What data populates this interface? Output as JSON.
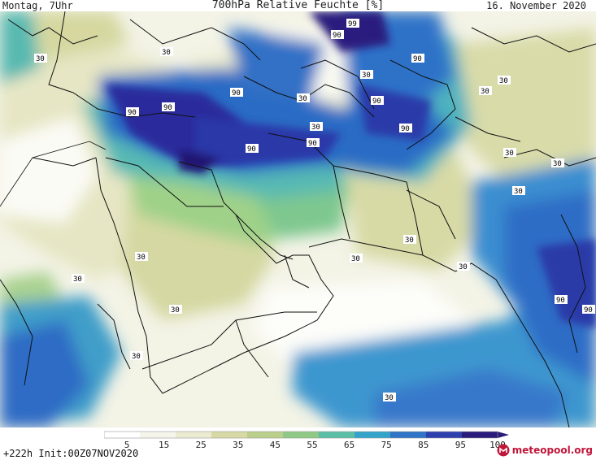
{
  "header": {
    "left": "Montag, 7Uhr",
    "title": "700hPa Relative Feuchte [%]",
    "right": "16. November 2020"
  },
  "footer": {
    "run_info": "+222h  Init:00Z07NOV2020",
    "brand": "meteopool.org"
  },
  "colorbar": {
    "ticks": [
      "5",
      "15",
      "25",
      "35",
      "45",
      "55",
      "65",
      "75",
      "85",
      "95",
      "100"
    ],
    "colors": [
      "#ffffff",
      "#f6f5ec",
      "#ebebd2",
      "#d7d9a5",
      "#b9cf8a",
      "#8fc986",
      "#5cbfa5",
      "#34a3c9",
      "#2f74c6",
      "#2e3fae",
      "#2a1a7a"
    ]
  },
  "contour_labels": [
    "90",
    "90",
    "99",
    "90",
    "90",
    "90",
    "90",
    "90",
    "90",
    "90",
    "30",
    "30",
    "30",
    "30",
    "30",
    "30",
    "30",
    "30",
    "30",
    "30",
    "30",
    "30",
    "30",
    "30",
    "30",
    "30",
    "30",
    "30",
    "90",
    "90"
  ]
}
